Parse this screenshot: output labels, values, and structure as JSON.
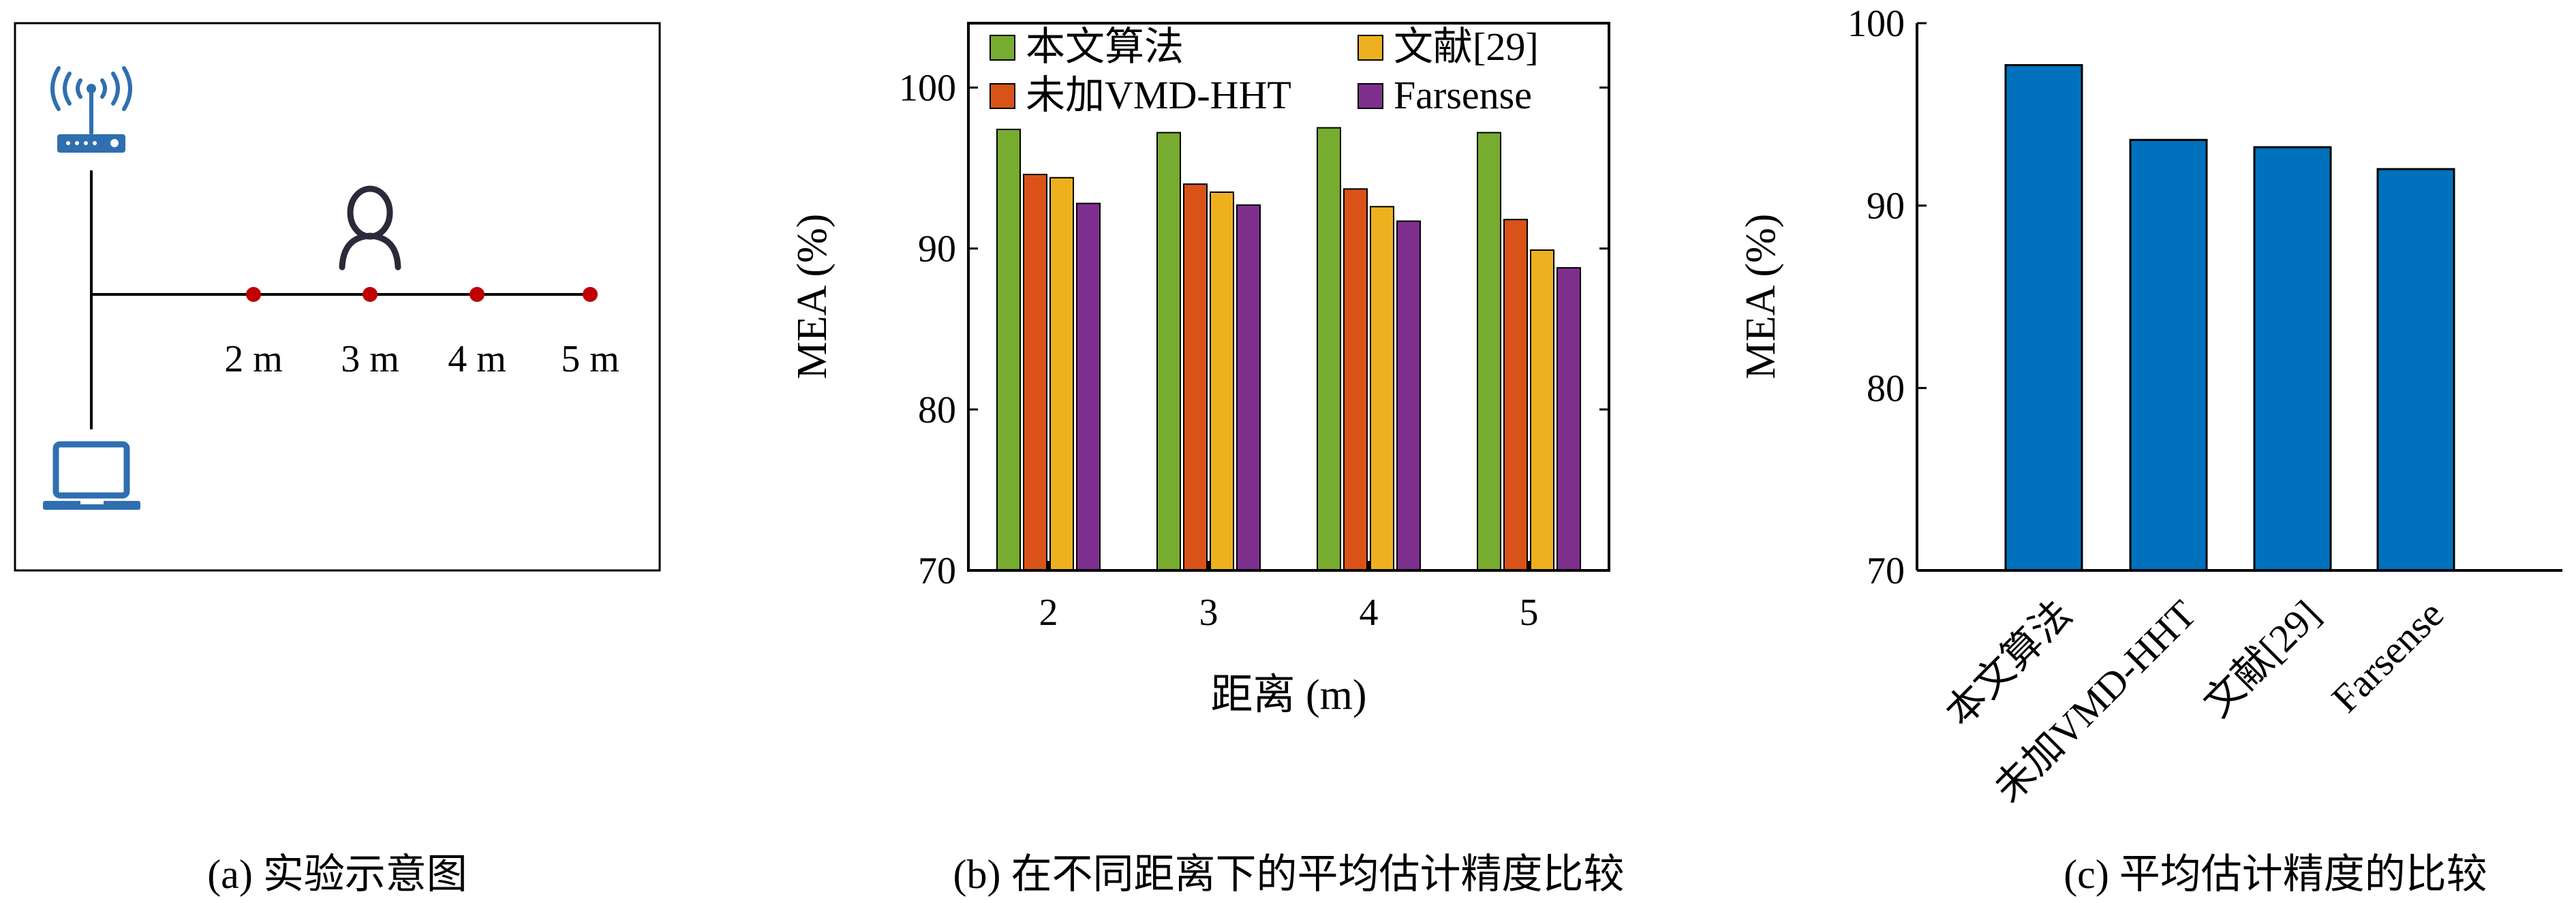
{
  "colors": {
    "green": "#77ac30",
    "red": "#d95319",
    "yellow": "#edb120",
    "purple": "#7e2f8e",
    "blue": "#0072bd",
    "device_blue": "#2f6fb0",
    "point_red": "#c00000",
    "person": "#2a2a3a"
  },
  "panel_a": {
    "caption": "(a) 实验示意图",
    "distance_labels": [
      "2 m",
      "3 m",
      "4 m",
      "5 m"
    ],
    "icons": [
      "router-icon",
      "person-icon",
      "laptop-icon"
    ]
  },
  "captions": {
    "b": "(b) 在不同距离下的平均估计精度比较",
    "c": "(c) 平均估计精度的比较"
  },
  "chart_data": [
    {
      "type": "bar",
      "title": "",
      "xlabel": "距离 (m)",
      "ylabel": "MEA (%)",
      "categories": [
        "2",
        "3",
        "4",
        "5"
      ],
      "ylim": [
        70,
        104
      ],
      "yticks": [
        70,
        80,
        90,
        100
      ],
      "grid": false,
      "legend_position": "top",
      "series": [
        {
          "name": "本文算法",
          "color_key": "green",
          "values": [
            97.4,
            97.2,
            97.5,
            97.2
          ]
        },
        {
          "name": "未加VMD-HHT",
          "color_key": "red",
          "values": [
            94.6,
            94.0,
            93.7,
            91.8
          ]
        },
        {
          "name": "文献[29]",
          "color_key": "yellow",
          "values": [
            94.4,
            93.5,
            92.6,
            89.9
          ]
        },
        {
          "name": "Farsense",
          "color_key": "purple",
          "values": [
            92.8,
            92.7,
            91.7,
            88.8
          ]
        }
      ]
    },
    {
      "type": "bar",
      "title": "",
      "xlabel": "",
      "ylabel": "MEA (%)",
      "categories": [
        "本文算法",
        "未加VMD-HHT",
        "文献[29]",
        "Farsense"
      ],
      "values": [
        97.7,
        93.6,
        93.2,
        92.0
      ],
      "ylim": [
        70,
        100
      ],
      "yticks": [
        70,
        80,
        90,
        100
      ],
      "grid": false,
      "bar_color_key": "blue"
    }
  ]
}
